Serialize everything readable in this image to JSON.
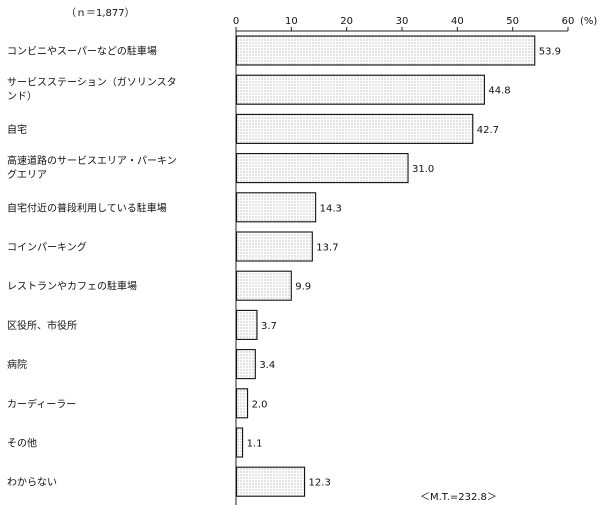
{
  "chart_data": {
    "type": "bar",
    "orientation": "horizontal",
    "sample_size_label": "（ｎ＝1,877）",
    "unit_label": "(%)",
    "xlim": [
      0,
      60
    ],
    "ticks": [
      "0",
      "10",
      "20",
      "30",
      "40",
      "50",
      "60"
    ],
    "grid": false,
    "fill_pattern": "dotted",
    "categories": [
      [
        "コンビニやスーパーなどの駐車場"
      ],
      [
        "サービスステーション（ガソリンスタ",
        "ンド）"
      ],
      [
        "自宅"
      ],
      [
        "高速道路のサービスエリア・パーキン",
        "グエリア"
      ],
      [
        "自宅付近の普段利用している駐車場"
      ],
      [
        "コインパーキング"
      ],
      [
        "レストランやカフェの駐車場"
      ],
      [
        "区役所、市役所"
      ],
      [
        "病院"
      ],
      [
        "カーディーラー"
      ],
      [
        "その他"
      ],
      [
        "わからない"
      ]
    ],
    "values": [
      53.9,
      44.8,
      42.7,
      31.0,
      14.3,
      13.7,
      9.9,
      3.7,
      3.4,
      2.0,
      1.1,
      12.3
    ],
    "value_labels": [
      "53.9",
      "44.8",
      "42.7",
      "31.0",
      "14.3",
      "13.7",
      "9.9",
      "3.7",
      "3.4",
      "2.0",
      "1.1",
      "12.3"
    ],
    "footnote": "＜M.T.=232.8＞"
  }
}
